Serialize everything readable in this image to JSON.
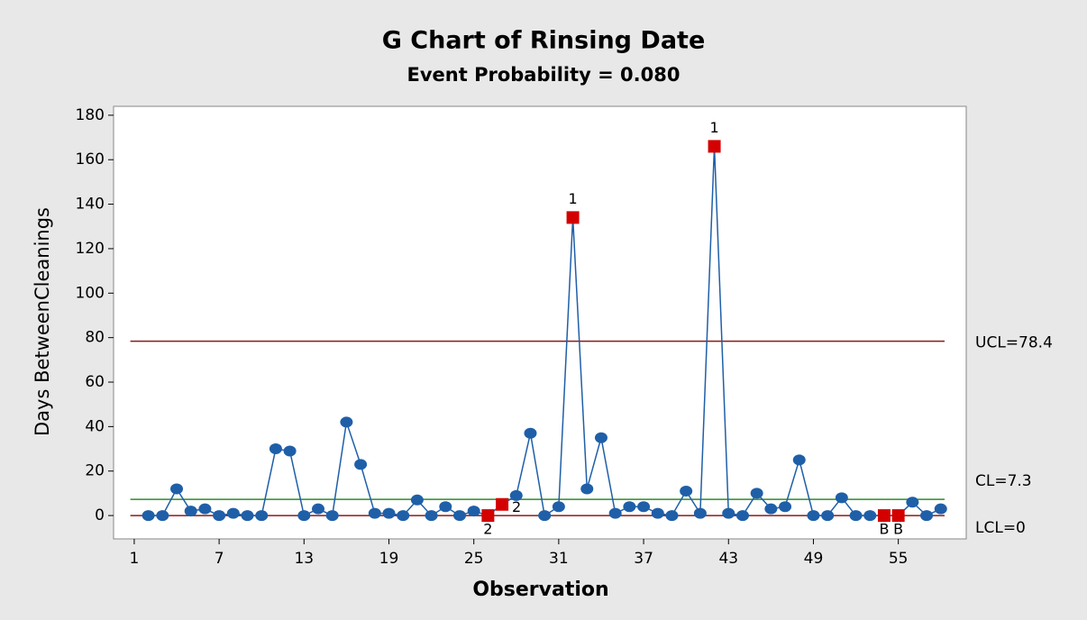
{
  "chart_data": {
    "type": "gchart",
    "title": "G Chart of Rinsing Date",
    "subtitle": "Event Probability = 0.080",
    "x_label": "Observation",
    "y_label": "Days BetweenCleanings",
    "x": [
      2,
      3,
      4,
      5,
      6,
      7,
      8,
      9,
      10,
      11,
      12,
      13,
      14,
      15,
      16,
      17,
      18,
      19,
      20,
      21,
      22,
      23,
      24,
      25,
      26,
      27,
      28,
      29,
      30,
      31,
      32,
      33,
      34,
      35,
      36,
      37,
      38,
      39,
      40,
      41,
      42,
      43,
      44,
      45,
      46,
      47,
      48,
      49,
      50,
      51,
      52,
      53,
      54,
      55,
      56,
      57,
      58
    ],
    "values": [
      0,
      0,
      12,
      2,
      3,
      0,
      1,
      0,
      0,
      30,
      29,
      0,
      3,
      0,
      42,
      23,
      1,
      1,
      0,
      7,
      0,
      4,
      0,
      2,
      0,
      5,
      9,
      37,
      0,
      4,
      134,
      12,
      35,
      1,
      4,
      4,
      1,
      0,
      11,
      1,
      166,
      1,
      0,
      10,
      3,
      4,
      25,
      0,
      0,
      8,
      0,
      0,
      0,
      0,
      6,
      0,
      3
    ],
    "color": "#1f5fa8",
    "flag_color": "#d40000",
    "flags": [
      {
        "x": 26,
        "label": "2"
      },
      {
        "x": 27,
        "label": "2"
      },
      {
        "x": 32,
        "label": "1"
      },
      {
        "x": 42,
        "label": "1"
      },
      {
        "x": 54,
        "label": "B"
      },
      {
        "x": 55,
        "label": "B"
      }
    ],
    "limits": [
      {
        "label": "UCL=78.4",
        "value": 78.4,
        "color": "#8b1a1a"
      },
      {
        "label": "CL=7.3",
        "value": 7.3,
        "color": "#2e8b2e"
      },
      {
        "label": "LCL=0",
        "value": 0,
        "color": "#8b1a1a"
      }
    ],
    "xlim": [
      -0.46,
      59.8
    ],
    "ylim": [
      -10.5,
      184
    ],
    "xticks": [
      1,
      7,
      13,
      19,
      25,
      31,
      37,
      43,
      49,
      55
    ],
    "yticks": [
      0,
      20,
      40,
      60,
      80,
      100,
      120,
      140,
      160,
      180
    ]
  }
}
